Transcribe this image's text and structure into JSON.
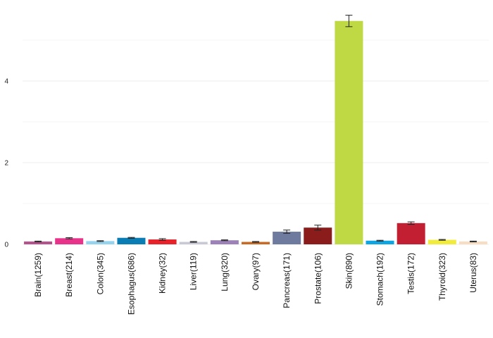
{
  "chart_data": {
    "type": "bar",
    "categories": [
      "Brain(1259)",
      "Breast(214)",
      "Colon(345)",
      "Esophagus(686)",
      "Kidney(32)",
      "Liver(119)",
      "Lung(320)",
      "Ovary(97)",
      "Pancreas(171)",
      "Prostate(106)",
      "Skin(890)",
      "Stomach(192)",
      "Testis(172)",
      "Thyroid(323)",
      "Uterus(83)"
    ],
    "values": [
      0.07,
      0.15,
      0.08,
      0.16,
      0.12,
      0.06,
      0.1,
      0.06,
      0.31,
      0.41,
      5.47,
      0.09,
      0.52,
      0.11,
      0.07
    ],
    "error": [
      0.01,
      0.015,
      0.01,
      0.01,
      0.02,
      0.01,
      0.01,
      0.01,
      0.04,
      0.06,
      0.14,
      0.01,
      0.03,
      0.01,
      0.01
    ],
    "colors": [
      "#b5548c",
      "#e8338b",
      "#95d3ef",
      "#0a7db5",
      "#e8222a",
      "#c9c9d6",
      "#9c82b8",
      "#c96a24",
      "#6e7a9e",
      "#8a1c1c",
      "#bfd944",
      "#0fa5e3",
      "#c21f32",
      "#f1ec3b",
      "#f8ddc2"
    ],
    "yticks": [
      0,
      2,
      4
    ],
    "ylim": [
      0,
      5.7
    ],
    "title": "",
    "xlabel": "",
    "ylabel": "",
    "grid": true,
    "legend": "none"
  }
}
